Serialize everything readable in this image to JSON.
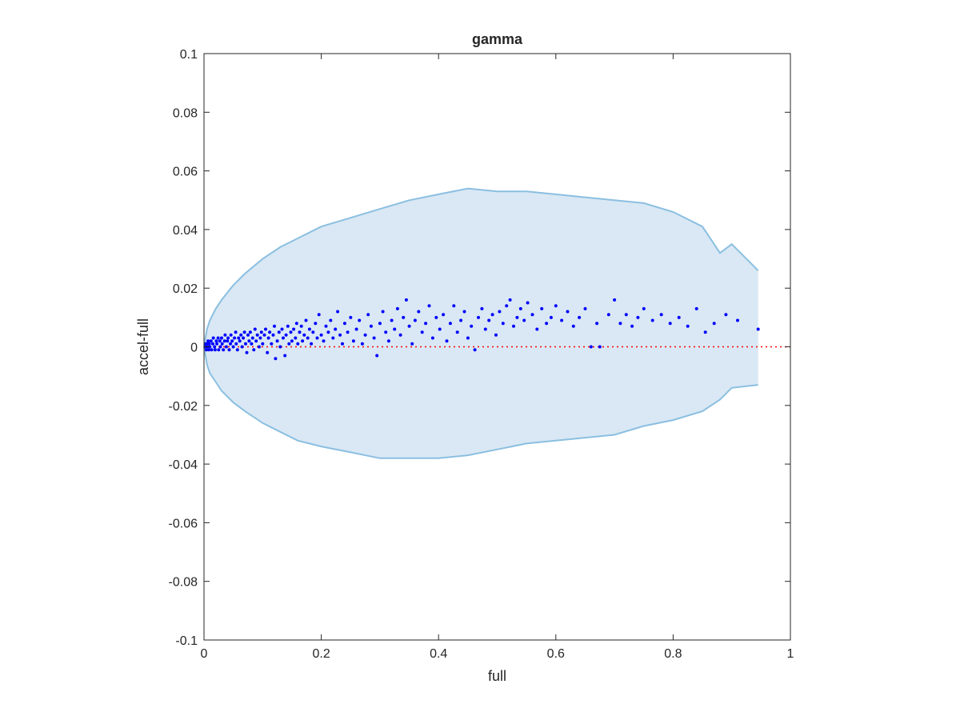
{
  "chart_data": {
    "type": "scatter",
    "title": "gamma",
    "xlabel": "full",
    "ylabel": "accel-full",
    "xlim": [
      0,
      1
    ],
    "ylim": [
      -0.1,
      0.1
    ],
    "xticks": [
      0,
      0.2,
      0.4,
      0.6,
      0.8,
      1
    ],
    "xtick_labels": [
      "0",
      "0.2",
      "0.4",
      "0.6",
      "0.8",
      "1"
    ],
    "yticks": [
      -0.1,
      -0.08,
      -0.06,
      -0.04,
      -0.02,
      0,
      0.02,
      0.04,
      0.06,
      0.08,
      0.1
    ],
    "ytick_labels": [
      "-0.1",
      "-0.08",
      "-0.06",
      "-0.04",
      "-0.02",
      "0",
      "0.02",
      "0.04",
      "0.06",
      "0.08",
      "0.1"
    ],
    "grid": false,
    "reference_line": {
      "y": 0,
      "style": "dotted",
      "color": "#ff0000"
    },
    "band": {
      "color_fill": "#d9e8f4",
      "color_line": "#8bbfe1",
      "x": [
        0,
        0.005,
        0.01,
        0.02,
        0.03,
        0.05,
        0.07,
        0.1,
        0.13,
        0.16,
        0.2,
        0.25,
        0.3,
        0.35,
        0.4,
        0.45,
        0.5,
        0.55,
        0.6,
        0.65,
        0.7,
        0.75,
        0.8,
        0.85,
        0.88,
        0.9,
        0.945
      ],
      "upper": [
        0,
        0.006,
        0.009,
        0.013,
        0.016,
        0.021,
        0.025,
        0.03,
        0.034,
        0.037,
        0.041,
        0.044,
        0.047,
        0.05,
        0.052,
        0.054,
        0.053,
        0.053,
        0.052,
        0.051,
        0.05,
        0.049,
        0.046,
        0.041,
        0.032,
        0.035,
        0.026
      ],
      "lower": [
        0,
        -0.006,
        -0.009,
        -0.012,
        -0.015,
        -0.019,
        -0.022,
        -0.026,
        -0.029,
        -0.032,
        -0.034,
        -0.036,
        -0.038,
        -0.038,
        -0.038,
        -0.037,
        -0.035,
        -0.033,
        -0.032,
        -0.031,
        -0.03,
        -0.027,
        -0.025,
        -0.022,
        -0.018,
        -0.014,
        -0.013
      ]
    },
    "series": [
      {
        "color": "#0000ff",
        "points": [
          [
            0.002,
            0.0
          ],
          [
            0.003,
            0.001
          ],
          [
            0.004,
            -0.001
          ],
          [
            0.005,
            0.001
          ],
          [
            0.006,
            0.0
          ],
          [
            0.007,
            0.002
          ],
          [
            0.008,
            -0.001
          ],
          [
            0.009,
            0.001
          ],
          [
            0.01,
            0.0
          ],
          [
            0.012,
            0.002
          ],
          [
            0.013,
            -0.001
          ],
          [
            0.015,
            0.001
          ],
          [
            0.016,
            0.003
          ],
          [
            0.018,
            0.0
          ],
          [
            0.019,
            -0.001
          ],
          [
            0.021,
            0.002
          ],
          [
            0.022,
            0.001
          ],
          [
            0.024,
            0.003
          ],
          [
            0.025,
            -0.001
          ],
          [
            0.027,
            0.002
          ],
          [
            0.028,
            0.0
          ],
          [
            0.03,
            0.003
          ],
          [
            0.031,
            0.001
          ],
          [
            0.033,
            -0.001
          ],
          [
            0.035,
            0.002
          ],
          [
            0.036,
            0.004
          ],
          [
            0.038,
            0.0
          ],
          [
            0.04,
            0.002
          ],
          [
            0.041,
            0.003
          ],
          [
            0.043,
            -0.001
          ],
          [
            0.045,
            0.001
          ],
          [
            0.046,
            0.004
          ],
          [
            0.048,
            0.002
          ],
          [
            0.05,
            0.0
          ],
          [
            0.052,
            0.003
          ],
          [
            0.054,
            0.005
          ],
          [
            0.055,
            0.001
          ],
          [
            0.057,
            -0.001
          ],
          [
            0.059,
            0.003
          ],
          [
            0.061,
            0.002
          ],
          [
            0.063,
            0.004
          ],
          [
            0.065,
            0.0
          ],
          [
            0.067,
            0.003
          ],
          [
            0.069,
            0.005
          ],
          [
            0.071,
            0.001
          ],
          [
            0.073,
            -0.002
          ],
          [
            0.075,
            0.004
          ],
          [
            0.077,
            0.002
          ],
          [
            0.079,
            0.005
          ],
          [
            0.081,
            0.001
          ],
          [
            0.083,
            0.003
          ],
          [
            0.085,
            -0.001
          ],
          [
            0.087,
            0.006
          ],
          [
            0.089,
            0.002
          ],
          [
            0.091,
            0.004
          ],
          [
            0.094,
            0.0
          ],
          [
            0.096,
            0.003
          ],
          [
            0.098,
            0.005
          ],
          [
            0.1,
            0.001
          ],
          [
            0.103,
            0.004
          ],
          [
            0.105,
            0.006
          ],
          [
            0.108,
            -0.002
          ],
          [
            0.11,
            0.003
          ],
          [
            0.112,
            0.005
          ],
          [
            0.115,
            0.001
          ],
          [
            0.118,
            0.004
          ],
          [
            0.12,
            0.007
          ],
          [
            0.122,
            -0.004
          ],
          [
            0.125,
            0.002
          ],
          [
            0.128,
            0.005
          ],
          [
            0.13,
            0.0
          ],
          [
            0.133,
            0.006
          ],
          [
            0.135,
            0.003
          ],
          [
            0.138,
            -0.003
          ],
          [
            0.14,
            0.004
          ],
          [
            0.143,
            0.007
          ],
          [
            0.145,
            0.001
          ],
          [
            0.148,
            0.005
          ],
          [
            0.15,
            0.002
          ],
          [
            0.153,
            0.006
          ],
          [
            0.156,
            0.003
          ],
          [
            0.158,
            0.008
          ],
          [
            0.16,
            0.001
          ],
          [
            0.163,
            0.005
          ],
          [
            0.166,
            0.007
          ],
          [
            0.168,
            0.002
          ],
          [
            0.171,
            0.004
          ],
          [
            0.174,
            0.009
          ],
          [
            0.177,
            0.003
          ],
          [
            0.18,
            0.006
          ],
          [
            0.183,
            0.001
          ],
          [
            0.186,
            0.005
          ],
          [
            0.19,
            0.008
          ],
          [
            0.193,
            0.003
          ],
          [
            0.196,
            0.011
          ],
          [
            0.2,
            0.004
          ],
          [
            0.204,
            0.002
          ],
          [
            0.208,
            0.007
          ],
          [
            0.212,
            0.005
          ],
          [
            0.216,
            0.009
          ],
          [
            0.22,
            0.003
          ],
          [
            0.224,
            0.006
          ],
          [
            0.228,
            0.012
          ],
          [
            0.232,
            0.004
          ],
          [
            0.236,
            0.001
          ],
          [
            0.24,
            0.008
          ],
          [
            0.245,
            0.005
          ],
          [
            0.25,
            0.01
          ],
          [
            0.255,
            0.002
          ],
          [
            0.26,
            0.006
          ],
          [
            0.265,
            0.009
          ],
          [
            0.27,
            0.001
          ],
          [
            0.275,
            0.004
          ],
          [
            0.28,
            0.011
          ],
          [
            0.285,
            0.007
          ],
          [
            0.29,
            0.003
          ],
          [
            0.295,
            -0.003
          ],
          [
            0.3,
            0.008
          ],
          [
            0.305,
            0.012
          ],
          [
            0.31,
            0.005
          ],
          [
            0.315,
            0.002
          ],
          [
            0.32,
            0.009
          ],
          [
            0.325,
            0.006
          ],
          [
            0.33,
            0.013
          ],
          [
            0.335,
            0.004
          ],
          [
            0.34,
            0.01
          ],
          [
            0.345,
            0.016
          ],
          [
            0.35,
            0.007
          ],
          [
            0.355,
            0.001
          ],
          [
            0.36,
            0.009
          ],
          [
            0.366,
            0.012
          ],
          [
            0.372,
            0.005
          ],
          [
            0.378,
            0.008
          ],
          [
            0.384,
            0.014
          ],
          [
            0.39,
            0.003
          ],
          [
            0.396,
            0.01
          ],
          [
            0.402,
            0.006
          ],
          [
            0.408,
            0.011
          ],
          [
            0.414,
            0.002
          ],
          [
            0.42,
            0.008
          ],
          [
            0.426,
            0.014
          ],
          [
            0.432,
            0.005
          ],
          [
            0.438,
            0.009
          ],
          [
            0.444,
            0.012
          ],
          [
            0.45,
            0.003
          ],
          [
            0.456,
            0.007
          ],
          [
            0.462,
            -0.001
          ],
          [
            0.468,
            0.01
          ],
          [
            0.474,
            0.013
          ],
          [
            0.48,
            0.006
          ],
          [
            0.486,
            0.009
          ],
          [
            0.492,
            0.011
          ],
          [
            0.498,
            0.004
          ],
          [
            0.504,
            0.012
          ],
          [
            0.51,
            0.008
          ],
          [
            0.516,
            0.014
          ],
          [
            0.522,
            0.016
          ],
          [
            0.528,
            0.007
          ],
          [
            0.534,
            0.01
          ],
          [
            0.54,
            0.013
          ],
          [
            0.546,
            0.009
          ],
          [
            0.552,
            0.015
          ],
          [
            0.56,
            0.011
          ],
          [
            0.568,
            0.006
          ],
          [
            0.576,
            0.013
          ],
          [
            0.584,
            0.008
          ],
          [
            0.592,
            0.01
          ],
          [
            0.6,
            0.014
          ],
          [
            0.61,
            0.009
          ],
          [
            0.62,
            0.012
          ],
          [
            0.63,
            0.007
          ],
          [
            0.64,
            0.01
          ],
          [
            0.65,
            0.013
          ],
          [
            0.66,
            0.0
          ],
          [
            0.67,
            0.008
          ],
          [
            0.675,
            0.0
          ],
          [
            0.69,
            0.011
          ],
          [
            0.7,
            0.016
          ],
          [
            0.71,
            0.008
          ],
          [
            0.72,
            0.011
          ],
          [
            0.73,
            0.007
          ],
          [
            0.74,
            0.01
          ],
          [
            0.75,
            0.013
          ],
          [
            0.765,
            0.009
          ],
          [
            0.78,
            0.011
          ],
          [
            0.795,
            0.008
          ],
          [
            0.81,
            0.01
          ],
          [
            0.825,
            0.007
          ],
          [
            0.84,
            0.013
          ],
          [
            0.855,
            0.005
          ],
          [
            0.87,
            0.008
          ],
          [
            0.89,
            0.011
          ],
          [
            0.91,
            0.009
          ],
          [
            0.945,
            0.006
          ]
        ]
      }
    ]
  }
}
